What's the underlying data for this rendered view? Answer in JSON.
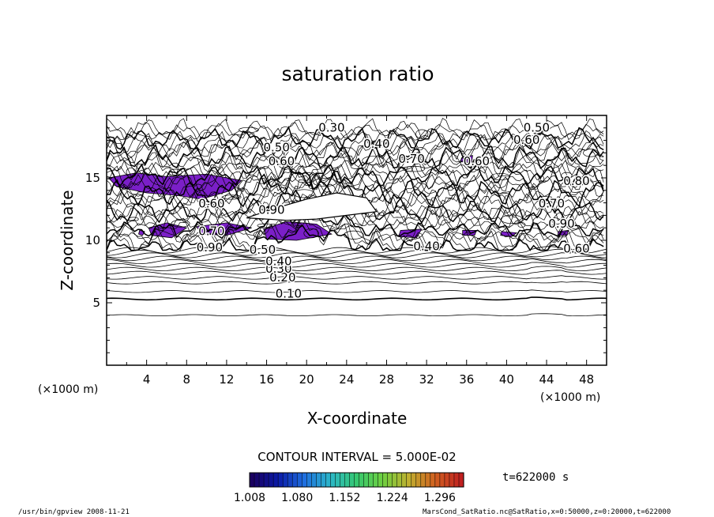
{
  "chart_data": {
    "type": "contour",
    "title": "saturation ratio",
    "xlabel": "X-coordinate",
    "ylabel": "Z-coordinate",
    "x_unit": "(×1000 m)",
    "z_unit": "(×1000 m)",
    "x_unit_bottom": "(×1000 m)",
    "xlim": [
      0,
      50
    ],
    "ylim": [
      0,
      20
    ],
    "xticks": [
      "4",
      "8",
      "12",
      "16",
      "20",
      "24",
      "28",
      "32",
      "36",
      "40",
      "44",
      "48"
    ],
    "yticks": [
      "5",
      "10",
      "15"
    ],
    "contour_interval_text": "CONTOUR INTERVAL = 5.000E-02",
    "contour_labels": [
      {
        "text": "0.10",
        "x": 18.2,
        "z": 5.7
      },
      {
        "text": "0.20",
        "x": 17.6,
        "z": 7.0
      },
      {
        "text": "0.30",
        "x": 17.2,
        "z": 7.7
      },
      {
        "text": "0.40",
        "x": 17.2,
        "z": 8.3
      },
      {
        "text": "0.50",
        "x": 15.6,
        "z": 9.2
      },
      {
        "text": "0.30",
        "x": 22.5,
        "z": 19.0
      },
      {
        "text": "0.50",
        "x": 43.0,
        "z": 19.0
      },
      {
        "text": "0.60",
        "x": 42.0,
        "z": 18.0
      },
      {
        "text": "0.40",
        "x": 27.0,
        "z": 17.7
      },
      {
        "text": "0.50",
        "x": 17.0,
        "z": 17.4
      },
      {
        "text": "0.60",
        "x": 17.5,
        "z": 16.3
      },
      {
        "text": "0.70",
        "x": 30.5,
        "z": 16.5
      },
      {
        "text": "0.60",
        "x": 37.0,
        "z": 16.3
      },
      {
        "text": "0.80",
        "x": 47.0,
        "z": 14.7
      },
      {
        "text": "0.70",
        "x": 44.5,
        "z": 12.9
      },
      {
        "text": "0.90",
        "x": 45.5,
        "z": 11.3
      },
      {
        "text": "0.60",
        "x": 10.5,
        "z": 12.9
      },
      {
        "text": "0.90",
        "x": 16.5,
        "z": 12.4
      },
      {
        "text": "0.70",
        "x": 10.5,
        "z": 10.7
      },
      {
        "text": "0.90",
        "x": 10.3,
        "z": 9.4
      },
      {
        "text": "0.40",
        "x": 32.0,
        "z": 9.5
      },
      {
        "text": "0.60",
        "x": 47.0,
        "z": 9.3
      }
    ],
    "shaded_regions_note": "saturation ratio > 1.008",
    "shaded_color": "#7b1fc8",
    "colorbar": {
      "ticks": [
        "1.008",
        "1.080",
        "1.152",
        "1.224",
        "1.296"
      ],
      "min": 1.008,
      "max": 1.332,
      "colors": [
        "#1a0060",
        "#0b1aa8",
        "#1f6fe0",
        "#2bb7c8",
        "#35c870",
        "#6fd040",
        "#c0b030",
        "#d06020",
        "#c02020"
      ]
    },
    "time_label": "t=622000  s"
  },
  "footer": {
    "left": "/usr/bin/gpview   2008-11-21",
    "right": "MarsCond_SatRatio.nc@SatRatio,x=0:50000,z=0:20000,t=622000"
  }
}
